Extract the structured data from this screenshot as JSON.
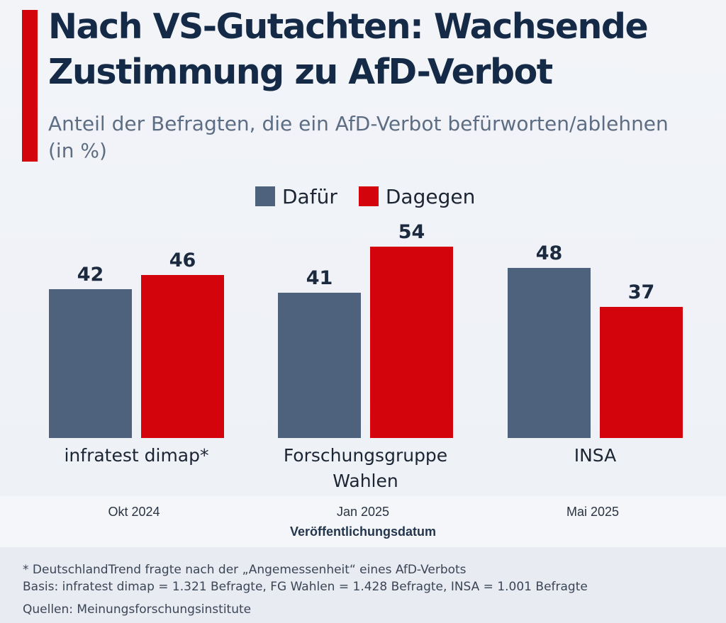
{
  "header": {
    "title": "Nach VS-Gutachten: Wachsende Zustimmung zu AfD-Verbot",
    "subtitle": "Anteil der Befragten, die ein AfD-Verbot befürworten/ablehnen (in %)"
  },
  "colors": {
    "accent": "#d4040d",
    "dafuer": "#4e627d",
    "dagegen": "#d4040d",
    "title": "#142a47"
  },
  "legend": [
    {
      "label": "Dafür",
      "color": "#4e627d"
    },
    {
      "label": "Dagegen",
      "color": "#d4040d"
    }
  ],
  "chart_data": {
    "type": "bar",
    "title": "Nach VS-Gutachten: Wachsende Zustimmung zu AfD-Verbot",
    "subtitle": "Anteil der Befragten, die ein AfD-Verbot befürworten/ablehnen (in %)",
    "categories": [
      "infratest dimap*",
      "Forschungsgruppe Wahlen",
      "INSA"
    ],
    "category_lines": [
      [
        "infratest dimap*"
      ],
      [
        "Forschungsgruppe",
        "Wahlen"
      ],
      [
        "INSA"
      ]
    ],
    "dates": [
      "Okt 2024",
      "Jan 2025",
      "Mai 2025"
    ],
    "xlabel": "Veröffentlichungsdatum",
    "ylabel": "",
    "ylim": [
      0,
      60
    ],
    "series": [
      {
        "name": "Dafür",
        "values": [
          42,
          41,
          48
        ],
        "color": "#4e627d"
      },
      {
        "name": "Dagegen",
        "values": [
          46,
          54,
          37
        ],
        "color": "#d4040d"
      }
    ],
    "grid": false,
    "legend_position": "top-center"
  },
  "notes": {
    "footnote": "* DeutschlandTrend fragte nach der „Angemessenheit“ eines AfD-Verbots",
    "basis": "Basis: infratest dimap = 1.321 Befragte, FG Wahlen = 1.428 Befragte, INSA = 1.001 Befragte",
    "source": "Quellen: Meinungsforschungsinstitute"
  }
}
